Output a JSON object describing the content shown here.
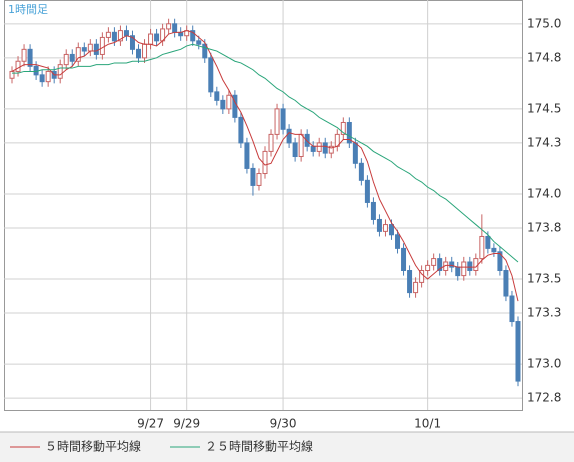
{
  "chart_data": {
    "type": "candlestick",
    "title": "1時間足",
    "categories": [
      null,
      null,
      null,
      null,
      null,
      null,
      null,
      null,
      null,
      null,
      null,
      null,
      null,
      null,
      null,
      null,
      null,
      null,
      null,
      null,
      null,
      null,
      null,
      "9/27",
      null,
      null,
      null,
      null,
      null,
      "9/29",
      null,
      null,
      null,
      null,
      null,
      null,
      null,
      null,
      null,
      null,
      null,
      null,
      null,
      null,
      null,
      "9/30",
      null,
      null,
      null,
      null,
      null,
      null,
      null,
      null,
      null,
      null,
      null,
      null,
      null,
      null,
      null,
      null,
      null,
      null,
      null,
      null,
      null,
      null,
      null,
      "10/1",
      null,
      null,
      null,
      null,
      null,
      null,
      null,
      null,
      null,
      null,
      null,
      null,
      null,
      null,
      null
    ],
    "open": [
      174.68,
      174.72,
      174.78,
      174.85,
      174.75,
      174.7,
      174.66,
      174.72,
      174.68,
      174.76,
      174.82,
      174.78,
      174.86,
      174.84,
      174.88,
      174.82,
      174.92,
      174.95,
      174.9,
      174.96,
      174.93,
      174.85,
      174.8,
      174.88,
      174.94,
      174.9,
      174.97,
      175.0,
      174.95,
      174.93,
      174.96,
      174.9,
      174.88,
      174.8,
      174.6,
      174.55,
      174.5,
      174.58,
      174.45,
      174.3,
      174.15,
      174.05,
      174.12,
      174.25,
      174.35,
      174.5,
      174.38,
      174.3,
      174.22,
      174.35,
      174.28,
      174.25,
      174.3,
      174.24,
      174.28,
      174.35,
      174.42,
      174.3,
      174.18,
      174.08,
      173.95,
      173.85,
      173.78,
      173.82,
      173.76,
      173.68,
      173.55,
      173.42,
      173.48,
      173.55,
      173.58,
      173.62,
      173.55,
      173.6,
      173.57,
      173.52,
      173.6,
      173.55,
      173.62,
      173.75,
      173.68,
      173.66,
      173.55,
      173.4,
      173.25
    ],
    "high": [
      174.75,
      174.81,
      174.88,
      174.88,
      174.78,
      174.73,
      174.75,
      174.75,
      174.79,
      174.85,
      174.85,
      174.89,
      174.89,
      174.91,
      174.91,
      174.95,
      174.98,
      174.98,
      174.99,
      174.99,
      174.96,
      174.88,
      174.91,
      174.97,
      174.97,
      175.0,
      175.03,
      175.03,
      174.98,
      174.99,
      174.99,
      174.93,
      174.91,
      174.83,
      174.63,
      174.58,
      174.61,
      174.61,
      174.48,
      174.33,
      174.18,
      174.15,
      174.28,
      174.38,
      174.53,
      174.53,
      174.41,
      174.33,
      174.38,
      174.38,
      174.31,
      174.33,
      174.33,
      174.31,
      174.38,
      174.45,
      174.45,
      174.33,
      174.21,
      174.11,
      173.98,
      173.88,
      173.85,
      173.85,
      173.79,
      173.71,
      173.58,
      173.51,
      173.58,
      173.61,
      173.65,
      173.65,
      173.63,
      173.63,
      173.6,
      173.63,
      173.63,
      173.65,
      173.88,
      173.78,
      173.71,
      173.69,
      173.58,
      173.43,
      173.28
    ],
    "low": [
      174.65,
      174.69,
      174.75,
      174.72,
      174.67,
      174.63,
      174.63,
      174.65,
      174.65,
      174.73,
      174.75,
      174.75,
      174.81,
      174.81,
      174.79,
      174.79,
      174.89,
      174.87,
      174.87,
      174.9,
      174.82,
      174.77,
      174.77,
      174.85,
      174.87,
      174.87,
      174.94,
      174.92,
      174.9,
      174.9,
      174.87,
      174.85,
      174.77,
      174.57,
      174.52,
      174.47,
      174.47,
      174.42,
      174.27,
      174.12,
      173.99,
      174.02,
      174.09,
      174.22,
      174.32,
      174.35,
      174.27,
      174.19,
      174.19,
      174.25,
      174.22,
      174.22,
      174.21,
      174.21,
      174.25,
      174.32,
      174.27,
      174.15,
      174.05,
      173.92,
      173.82,
      173.75,
      173.75,
      173.73,
      173.65,
      173.52,
      173.39,
      173.39,
      173.45,
      173.52,
      173.55,
      173.52,
      173.52,
      173.54,
      173.49,
      173.49,
      173.52,
      173.52,
      173.59,
      173.65,
      173.63,
      173.52,
      173.37,
      173.22,
      172.87
    ],
    "close": [
      174.72,
      174.78,
      174.85,
      174.75,
      174.7,
      174.66,
      174.72,
      174.68,
      174.76,
      174.82,
      174.78,
      174.86,
      174.84,
      174.88,
      174.82,
      174.92,
      174.95,
      174.9,
      174.96,
      174.93,
      174.85,
      174.8,
      174.88,
      174.94,
      174.9,
      174.97,
      175.0,
      174.95,
      174.93,
      174.96,
      174.9,
      174.88,
      174.8,
      174.6,
      174.55,
      174.5,
      174.58,
      174.45,
      174.3,
      174.15,
      174.05,
      174.12,
      174.25,
      174.35,
      174.5,
      174.38,
      174.3,
      174.22,
      174.35,
      174.28,
      174.25,
      174.3,
      174.24,
      174.28,
      174.35,
      174.42,
      174.3,
      174.18,
      174.08,
      173.95,
      173.85,
      173.78,
      173.82,
      173.76,
      173.68,
      173.55,
      173.42,
      173.48,
      173.55,
      173.58,
      173.62,
      173.55,
      173.6,
      173.57,
      173.52,
      173.6,
      173.55,
      173.62,
      173.75,
      173.68,
      173.66,
      173.55,
      173.4,
      173.25,
      172.9
    ],
    "up_color": "#c86464",
    "down_color": "#4a7fb5",
    "series": [
      {
        "name": "５時間移動平均線",
        "color": "#c83c3c",
        "values": [
          174.72,
          174.74,
          174.76,
          174.76,
          174.76,
          174.75,
          174.74,
          174.7,
          174.7,
          174.73,
          174.75,
          174.8,
          174.81,
          174.84,
          174.84,
          174.86,
          174.88,
          174.89,
          174.91,
          174.93,
          174.92,
          174.89,
          174.88,
          174.88,
          174.87,
          174.9,
          174.94,
          174.95,
          174.95,
          174.96,
          174.95,
          174.92,
          174.89,
          174.82,
          174.75,
          174.67,
          174.61,
          174.54,
          174.48,
          174.4,
          174.31,
          174.21,
          174.17,
          174.18,
          174.25,
          174.32,
          174.36,
          174.35,
          174.35,
          174.31,
          174.28,
          174.28,
          174.28,
          174.27,
          174.28,
          174.32,
          174.32,
          174.3,
          174.27,
          174.19,
          174.07,
          173.97,
          173.9,
          173.83,
          173.78,
          173.72,
          173.65,
          173.58,
          173.53,
          173.5,
          173.53,
          173.56,
          173.58,
          173.58,
          173.57,
          173.57,
          173.57,
          173.57,
          173.61,
          173.64,
          173.65,
          173.65,
          173.61,
          173.52,
          173.37
        ]
      },
      {
        "name": "２５時間移動平均線",
        "color": "#2aa57a",
        "values": [
          174.71,
          174.71,
          174.72,
          174.72,
          174.72,
          174.73,
          174.73,
          174.73,
          174.74,
          174.74,
          174.74,
          174.75,
          174.75,
          174.75,
          174.76,
          174.76,
          174.76,
          174.77,
          174.77,
          174.77,
          174.78,
          174.78,
          174.78,
          174.79,
          174.8,
          174.82,
          174.83,
          174.84,
          174.85,
          174.87,
          174.88,
          174.87,
          174.86,
          174.85,
          174.84,
          174.82,
          174.8,
          174.78,
          174.77,
          174.75,
          174.73,
          174.7,
          174.68,
          174.65,
          174.62,
          174.6,
          174.57,
          174.55,
          174.52,
          174.5,
          174.48,
          174.45,
          174.43,
          174.41,
          174.39,
          174.36,
          174.34,
          174.32,
          174.3,
          174.28,
          174.25,
          174.23,
          174.21,
          174.19,
          174.16,
          174.14,
          174.12,
          174.09,
          174.07,
          174.04,
          174.02,
          173.99,
          173.97,
          173.94,
          173.91,
          173.88,
          173.85,
          173.82,
          173.79,
          173.76,
          173.72,
          173.69,
          173.66,
          173.63,
          173.6
        ]
      }
    ],
    "ylim": [
      172.73,
      175.14
    ],
    "yticks": [
      {
        "value": 175.0,
        "label": "175.0"
      },
      174.8,
      174.5,
      174.3,
      {
        "value": 174.0,
        "label": "174.0"
      },
      173.8,
      173.5,
      173.3,
      {
        "value": 173.0,
        "label": "173.0"
      },
      172.8
    ],
    "grid": true
  }
}
